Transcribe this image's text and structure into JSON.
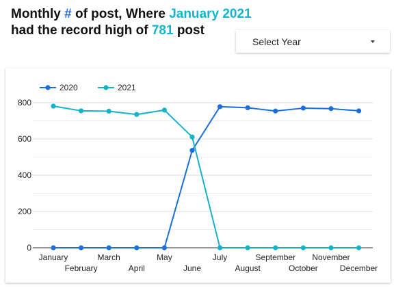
{
  "headline": {
    "part1": "Monthly ",
    "hash": "#",
    "part2": " of post, Where ",
    "highlight_month": "January 2021",
    "part3": "had the record high of ",
    "highlight_value": "781",
    "part4": " post"
  },
  "year_select": {
    "label": "Select Year",
    "icon": "chevron-down-icon"
  },
  "colors": {
    "accent_blue": "#1a73e8",
    "accent_teal": "#12b5cb",
    "series_2020": "#1a6fdc",
    "series_2021": "#13b2c8"
  },
  "chart_data": {
    "type": "line",
    "categories": [
      "January",
      "February",
      "March",
      "April",
      "May",
      "June",
      "July",
      "August",
      "September",
      "October",
      "November",
      "December"
    ],
    "series": [
      {
        "name": "2020",
        "color": "#1a6fdc",
        "values": [
          0,
          0,
          0,
          0,
          0,
          537,
          778,
          772,
          754,
          770,
          767,
          755
        ]
      },
      {
        "name": "2021",
        "color": "#13b2c8",
        "values": [
          781,
          755,
          753,
          735,
          759,
          611,
          0,
          0,
          0,
          0,
          0,
          0
        ]
      }
    ],
    "ylim": [
      0,
      800
    ],
    "yticks": [
      0,
      200,
      400,
      600,
      800
    ],
    "legend_position": "top-left",
    "grid": true
  }
}
